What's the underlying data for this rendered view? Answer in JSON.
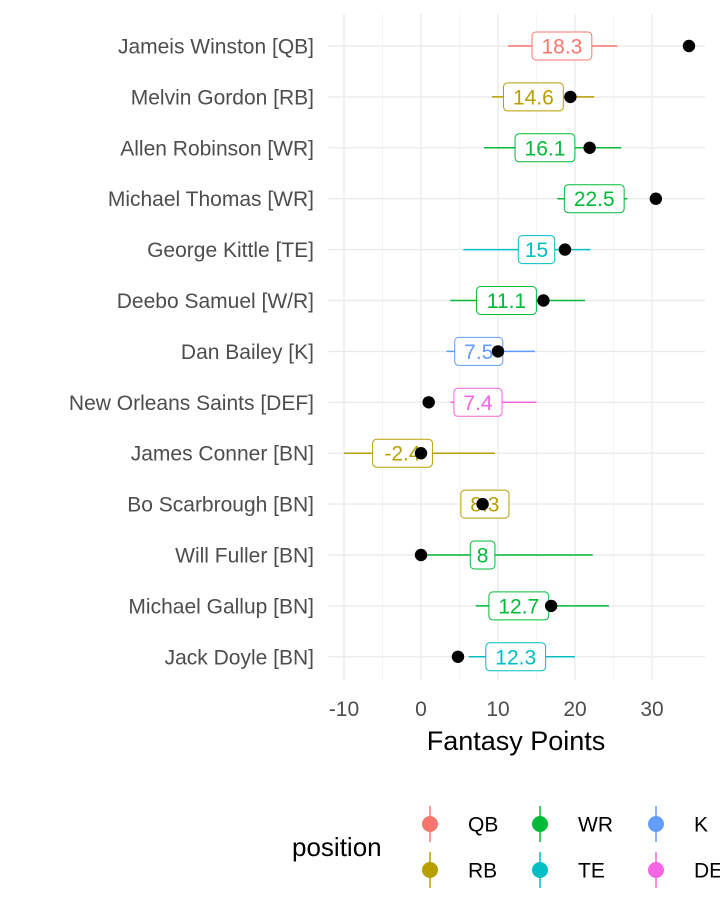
{
  "chart_data": {
    "type": "errorbar-dot",
    "xlabel": "Fantasy Points",
    "ylabel": "",
    "xlim": [
      -10,
      37
    ],
    "x_ticks": [
      -10,
      0,
      10,
      20,
      30
    ],
    "grid": true,
    "legend_title": "position",
    "legend_position": "bottom",
    "colors": {
      "QB": "#F8766D",
      "RB": "#B79F00",
      "WR": "#00BA38",
      "TE": "#00BFC4",
      "K": "#619CFF",
      "DEF": "#F564E3"
    },
    "legend": [
      {
        "label": "QB",
        "key": "QB"
      },
      {
        "label": "WR",
        "key": "WR"
      },
      {
        "label": "K",
        "key": "K"
      },
      {
        "label": "RB",
        "key": "RB"
      },
      {
        "label": "TE",
        "key": "TE"
      },
      {
        "label": "DEF",
        "key": "DEF"
      }
    ],
    "players": [
      {
        "name": "Jameis Winston [QB]",
        "position": "QB",
        "projection": 18.3,
        "label": "18.3",
        "low": 11.3,
        "high": 25.5,
        "actual": 34.8
      },
      {
        "name": "Melvin Gordon [RB]",
        "position": "RB",
        "projection": 14.6,
        "label": "14.6",
        "low": 9.2,
        "high": 22.5,
        "actual": 19.4
      },
      {
        "name": "Allen Robinson [WR]",
        "position": "WR",
        "projection": 16.1,
        "label": "16.1",
        "low": 8.2,
        "high": 26.0,
        "actual": 21.9
      },
      {
        "name": "Michael Thomas [WR]",
        "position": "WR",
        "projection": 22.5,
        "label": "22.5",
        "low": 17.7,
        "high": 26.8,
        "actual": 30.5
      },
      {
        "name": "George Kittle [TE]",
        "position": "TE",
        "projection": 15,
        "label": "15",
        "low": 5.5,
        "high": 22.0,
        "actual": 18.7
      },
      {
        "name": "Deebo Samuel [W/R]",
        "position": "WR",
        "projection": 11.1,
        "label": "11.1",
        "low": 3.8,
        "high": 21.3,
        "actual": 15.9
      },
      {
        "name": "Dan Bailey [K]",
        "position": "K",
        "projection": 7.5,
        "label": "7.5",
        "low": 3.3,
        "high": 14.8,
        "actual": 10.0
      },
      {
        "name": "New Orleans Saints [DEF]",
        "position": "DEF",
        "projection": 7.4,
        "label": "7.4",
        "low": 3.8,
        "high": 15.0,
        "actual": 1.0
      },
      {
        "name": "James Conner [BN]",
        "position": "RB",
        "projection": -2.4,
        "label": "-2.4",
        "low": -10.0,
        "high": 9.6,
        "actual": 0.0
      },
      {
        "name": "Bo Scarbrough [BN]",
        "position": "RB",
        "projection": 8.3,
        "label": "8.3",
        "low": 8.3,
        "high": 8.3,
        "actual": 8.0
      },
      {
        "name": "Will Fuller [BN]",
        "position": "WR",
        "projection": 8,
        "label": "8",
        "low": 0.0,
        "high": 22.3,
        "actual": 0.0
      },
      {
        "name": "Michael Gallup [BN]",
        "position": "WR",
        "projection": 12.7,
        "label": "12.7",
        "low": 7.1,
        "high": 24.4,
        "actual": 16.9
      },
      {
        "name": "Jack Doyle [BN]",
        "position": "TE",
        "projection": 12.3,
        "label": "12.3",
        "low": 6.2,
        "high": 20.0,
        "actual": 4.8
      }
    ]
  }
}
